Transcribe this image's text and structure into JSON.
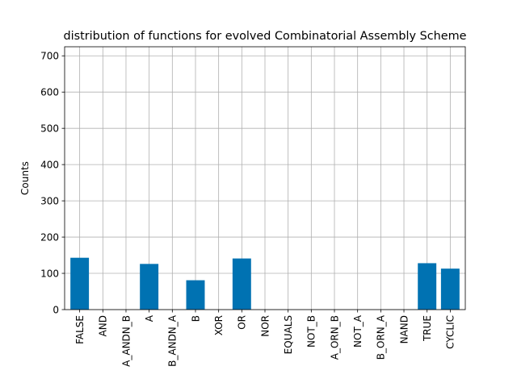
{
  "chart_data": {
    "type": "bar",
    "title": "distribution of functions for evolved Combinatorial Assembly Scheme",
    "xlabel": "",
    "ylabel": "Counts",
    "categories": [
      "FALSE",
      "AND",
      "A_ANDN_B",
      "A",
      "B_ANDN_A",
      "B",
      "XOR",
      "OR",
      "NOR",
      "EQUALS",
      "NOT_B",
      "A_ORN_B",
      "NOT_A",
      "B_ORN_A",
      "NAND",
      "TRUE",
      "CYCLIC"
    ],
    "values": [
      143,
      0,
      0,
      126,
      0,
      81,
      0,
      141,
      0,
      0,
      0,
      0,
      0,
      0,
      0,
      128,
      113
    ],
    "ylim": [
      0,
      725
    ],
    "yticks": [
      0,
      100,
      200,
      300,
      400,
      500,
      600,
      700
    ],
    "grid": true,
    "bar_color": "#0072b2"
  }
}
